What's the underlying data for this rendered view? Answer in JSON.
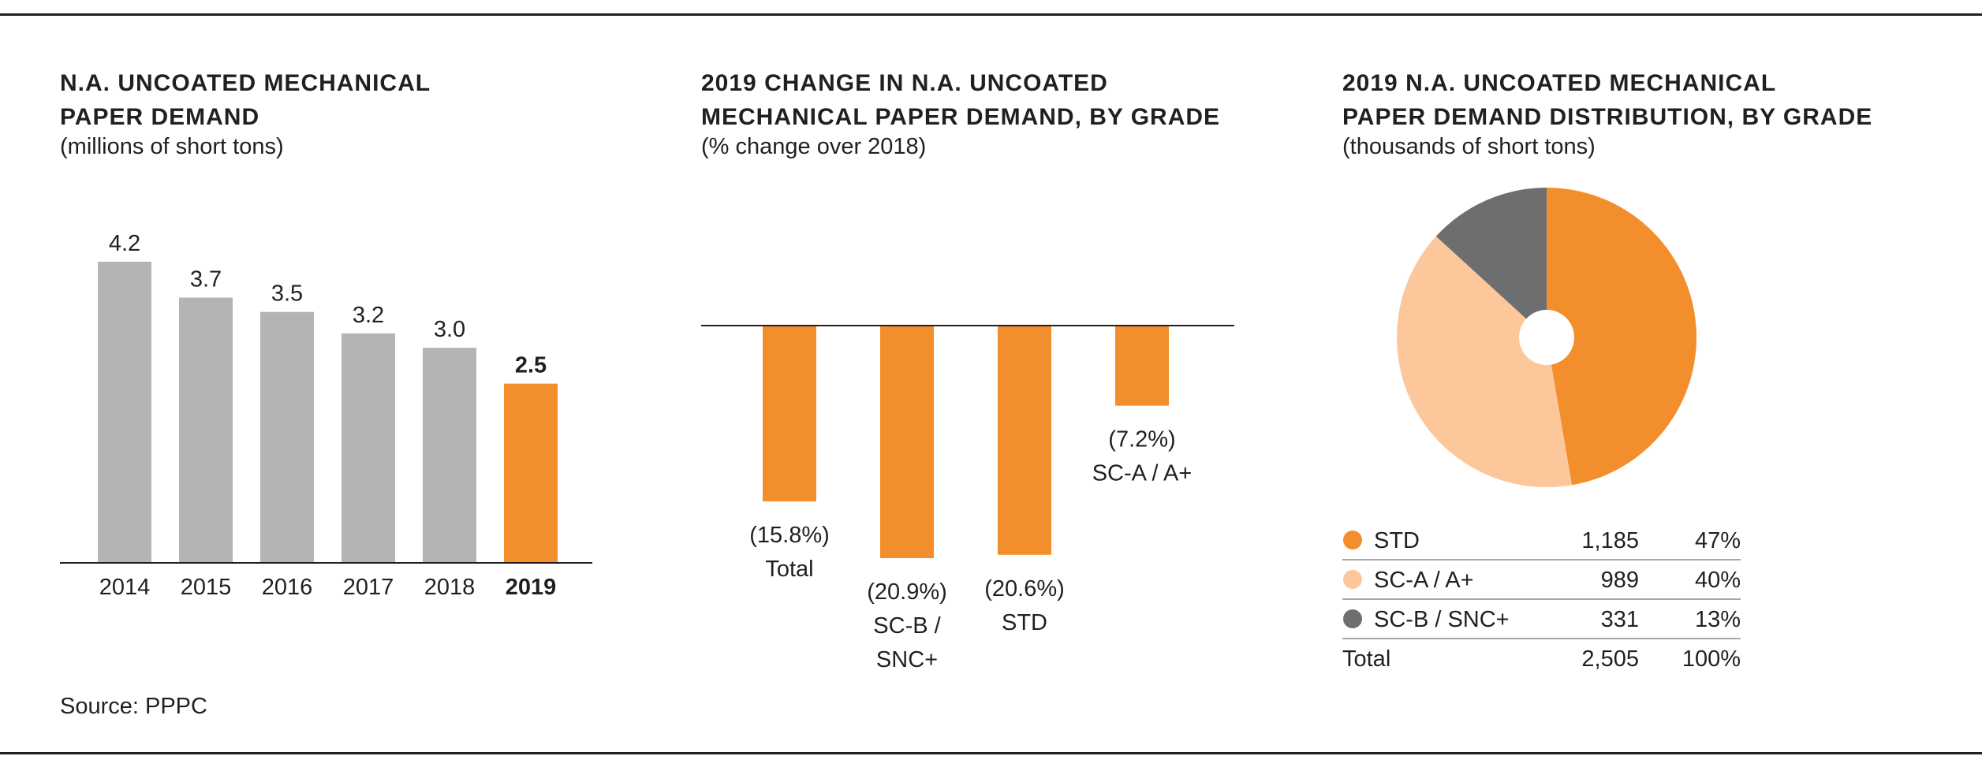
{
  "source": "Source: PPPC",
  "colors": {
    "gray": "#b3b4b6",
    "orange": "#f28e2b",
    "light_orange": "#fcc89b",
    "dark_gray": "#6d6e70",
    "text": "#231f20"
  },
  "chart_data": [
    {
      "type": "bar",
      "title_line1": "N.A. UNCOATED MECHANICAL",
      "title_line2": "PAPER DEMAND",
      "subtitle": "(millions of short tons)",
      "categories": [
        "2014",
        "2015",
        "2016",
        "2017",
        "2018",
        "2019"
      ],
      "values": [
        4.2,
        3.7,
        3.5,
        3.2,
        3.0,
        2.5
      ],
      "value_labels": [
        "4.2",
        "3.7",
        "3.5",
        "3.2",
        "3.0",
        "2.5"
      ],
      "highlight_index": 5,
      "ylim": [
        0,
        4.2
      ]
    },
    {
      "type": "bar",
      "title_line1": "2019 CHANGE IN N.A. UNCOATED",
      "title_line2": "MECHANICAL PAPER DEMAND, BY GRADE",
      "subtitle": "(% change over 2018)",
      "categories": [
        "Total",
        "SC-B / SNC+",
        "STD",
        "SC-A / A+"
      ],
      "label_lines": [
        [
          "(15.8%)",
          "Total"
        ],
        [
          "(20.9%)",
          "SC-B /",
          "SNC+"
        ],
        [
          "(20.6%)",
          "STD"
        ],
        [
          "(7.2%)",
          "SC-A / A+"
        ]
      ],
      "values": [
        -15.8,
        -20.9,
        -20.6,
        -7.2
      ],
      "ylim": [
        -20.9,
        0
      ]
    },
    {
      "type": "pie",
      "title_line1": "2019 N.A. UNCOATED MECHANICAL",
      "title_line2": "PAPER DEMAND DISTRIBUTION, BY GRADE",
      "subtitle": "(thousands of short tons)",
      "slices": [
        {
          "label": "STD",
          "value": 1185,
          "value_label": "1,185",
          "percent": "47%",
          "color": "#f28e2b"
        },
        {
          "label": "SC-A / A+",
          "value": 989,
          "value_label": "989",
          "percent": "40%",
          "color": "#fcc89b"
        },
        {
          "label": "SC-B / SNC+",
          "value": 331,
          "value_label": "331",
          "percent": "13%",
          "color": "#6d6e70"
        }
      ],
      "total": {
        "label": "Total",
        "value_label": "2,505",
        "percent": "100%"
      }
    }
  ]
}
